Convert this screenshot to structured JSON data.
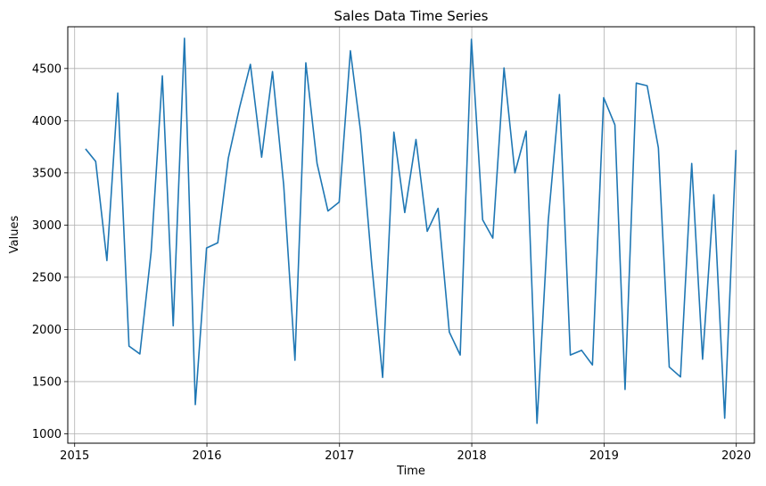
{
  "chart_data": {
    "type": "line",
    "title": "Sales Data Time Series",
    "xlabel": "Time",
    "ylabel": "Values",
    "xlim": [
      "2014-12-13",
      "2020-02-20"
    ],
    "ylim": [
      910,
      4900
    ],
    "grid": true,
    "x_ticks": [
      "2015",
      "2016",
      "2017",
      "2018",
      "2019",
      "2020"
    ],
    "y_ticks": [
      "1000",
      "1500",
      "2000",
      "2500",
      "3000",
      "3500",
      "4000",
      "4500"
    ],
    "series": [
      {
        "color": "#1f77b4",
        "x": [
          "2015-01-31",
          "2015-02-28",
          "2015-03-31",
          "2015-04-30",
          "2015-05-31",
          "2015-06-30",
          "2015-07-31",
          "2015-08-31",
          "2015-09-30",
          "2015-10-31",
          "2015-11-30",
          "2015-12-31",
          "2016-01-31",
          "2016-02-29",
          "2016-03-31",
          "2016-04-30",
          "2016-05-31",
          "2016-06-30",
          "2016-07-31",
          "2016-08-31",
          "2016-09-30",
          "2016-10-31",
          "2016-11-30",
          "2016-12-31",
          "2017-01-31",
          "2017-02-28",
          "2017-03-31",
          "2017-04-30",
          "2017-05-31",
          "2017-06-30",
          "2017-07-31",
          "2017-08-31",
          "2017-09-30",
          "2017-10-31",
          "2017-11-30",
          "2017-12-31",
          "2018-01-31",
          "2018-02-28",
          "2018-03-31",
          "2018-04-30",
          "2018-05-31",
          "2018-06-30",
          "2018-07-31",
          "2018-08-31",
          "2018-09-30",
          "2018-10-31",
          "2018-11-30",
          "2018-12-31",
          "2019-01-31",
          "2019-02-28",
          "2019-03-31",
          "2019-04-30",
          "2019-05-31",
          "2019-06-30",
          "2019-07-31",
          "2019-08-31",
          "2019-09-30",
          "2019-10-31",
          "2019-11-30",
          "2019-12-31"
        ],
        "values": [
          3730,
          3610,
          2660,
          4265,
          1840,
          1765,
          2740,
          4430,
          2035,
          4790,
          1280,
          2780,
          2830,
          3640,
          4125,
          4540,
          3650,
          4470,
          3380,
          1705,
          4555,
          3590,
          3135,
          3220,
          4670,
          3900,
          2620,
          1540,
          3890,
          3120,
          3820,
          2940,
          3160,
          1975,
          1755,
          4780,
          3050,
          2875,
          4505,
          3500,
          3900,
          1100,
          3040,
          4250,
          1755,
          1800,
          1660,
          4220,
          3960,
          1425,
          4360,
          4335,
          3740,
          1640,
          1545,
          3590,
          1715,
          3290,
          1150,
          3720
        ]
      }
    ]
  }
}
